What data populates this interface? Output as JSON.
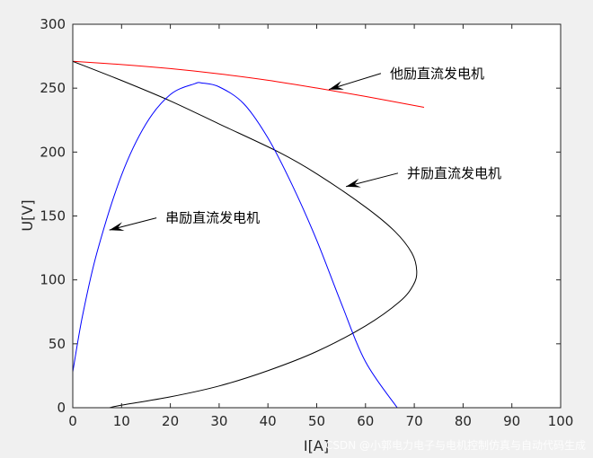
{
  "chart_data": {
    "type": "line",
    "xlabel": "I[A]",
    "ylabel": "U[V]",
    "xlim": [
      0,
      100
    ],
    "ylim": [
      0,
      300
    ],
    "xticks": [
      0,
      10,
      20,
      30,
      40,
      50,
      60,
      70,
      80,
      90,
      100
    ],
    "yticks": [
      0,
      50,
      100,
      150,
      200,
      250,
      300
    ],
    "grid": false,
    "series": [
      {
        "name": "他励直流发电机",
        "color": "#ff0000",
        "x": [
          0,
          10,
          20,
          30,
          40,
          50,
          60,
          72
        ],
        "y": [
          271,
          268.5,
          265.3,
          261.2,
          256.2,
          250.1,
          243.5,
          235
        ]
      },
      {
        "name": "并励直流发电机",
        "color": "#000000",
        "x": [
          0,
          10,
          20,
          30,
          42.2,
          50,
          60,
          66,
          69.5,
          70.5,
          69.8,
          67,
          60,
          50,
          40,
          30,
          20,
          10,
          7.5
        ],
        "y": [
          271,
          256,
          240,
          222,
          200,
          183,
          157,
          138,
          121,
          107,
          96,
          83,
          64,
          44,
          29,
          17,
          8.5,
          2,
          0
        ]
      },
      {
        "name": "串励直流发电机",
        "color": "#0000ff",
        "x": [
          0,
          2,
          5,
          10,
          15,
          20,
          25,
          26.5,
          30,
          35,
          40,
          45,
          50,
          55,
          60,
          66.5
        ],
        "y": [
          28,
          72,
          122,
          182,
          222,
          245,
          253.5,
          254,
          251,
          238,
          211,
          174,
          131,
          82,
          36,
          0
        ]
      }
    ],
    "annotations": [
      {
        "text": "他励直流发电机",
        "point": [
          52.5,
          249
        ],
        "text_pos": [
          65,
          258
        ]
      },
      {
        "text": "并励直流发电机",
        "point": [
          56,
          173
        ],
        "text_pos": [
          68.5,
          180
        ]
      },
      {
        "text": "串励直流发电机",
        "point": [
          7.5,
          139
        ],
        "text_pos": [
          19,
          145
        ]
      }
    ]
  },
  "watermark": "CSDN @小郭电力电子与电机控制仿真与自动代码生成"
}
